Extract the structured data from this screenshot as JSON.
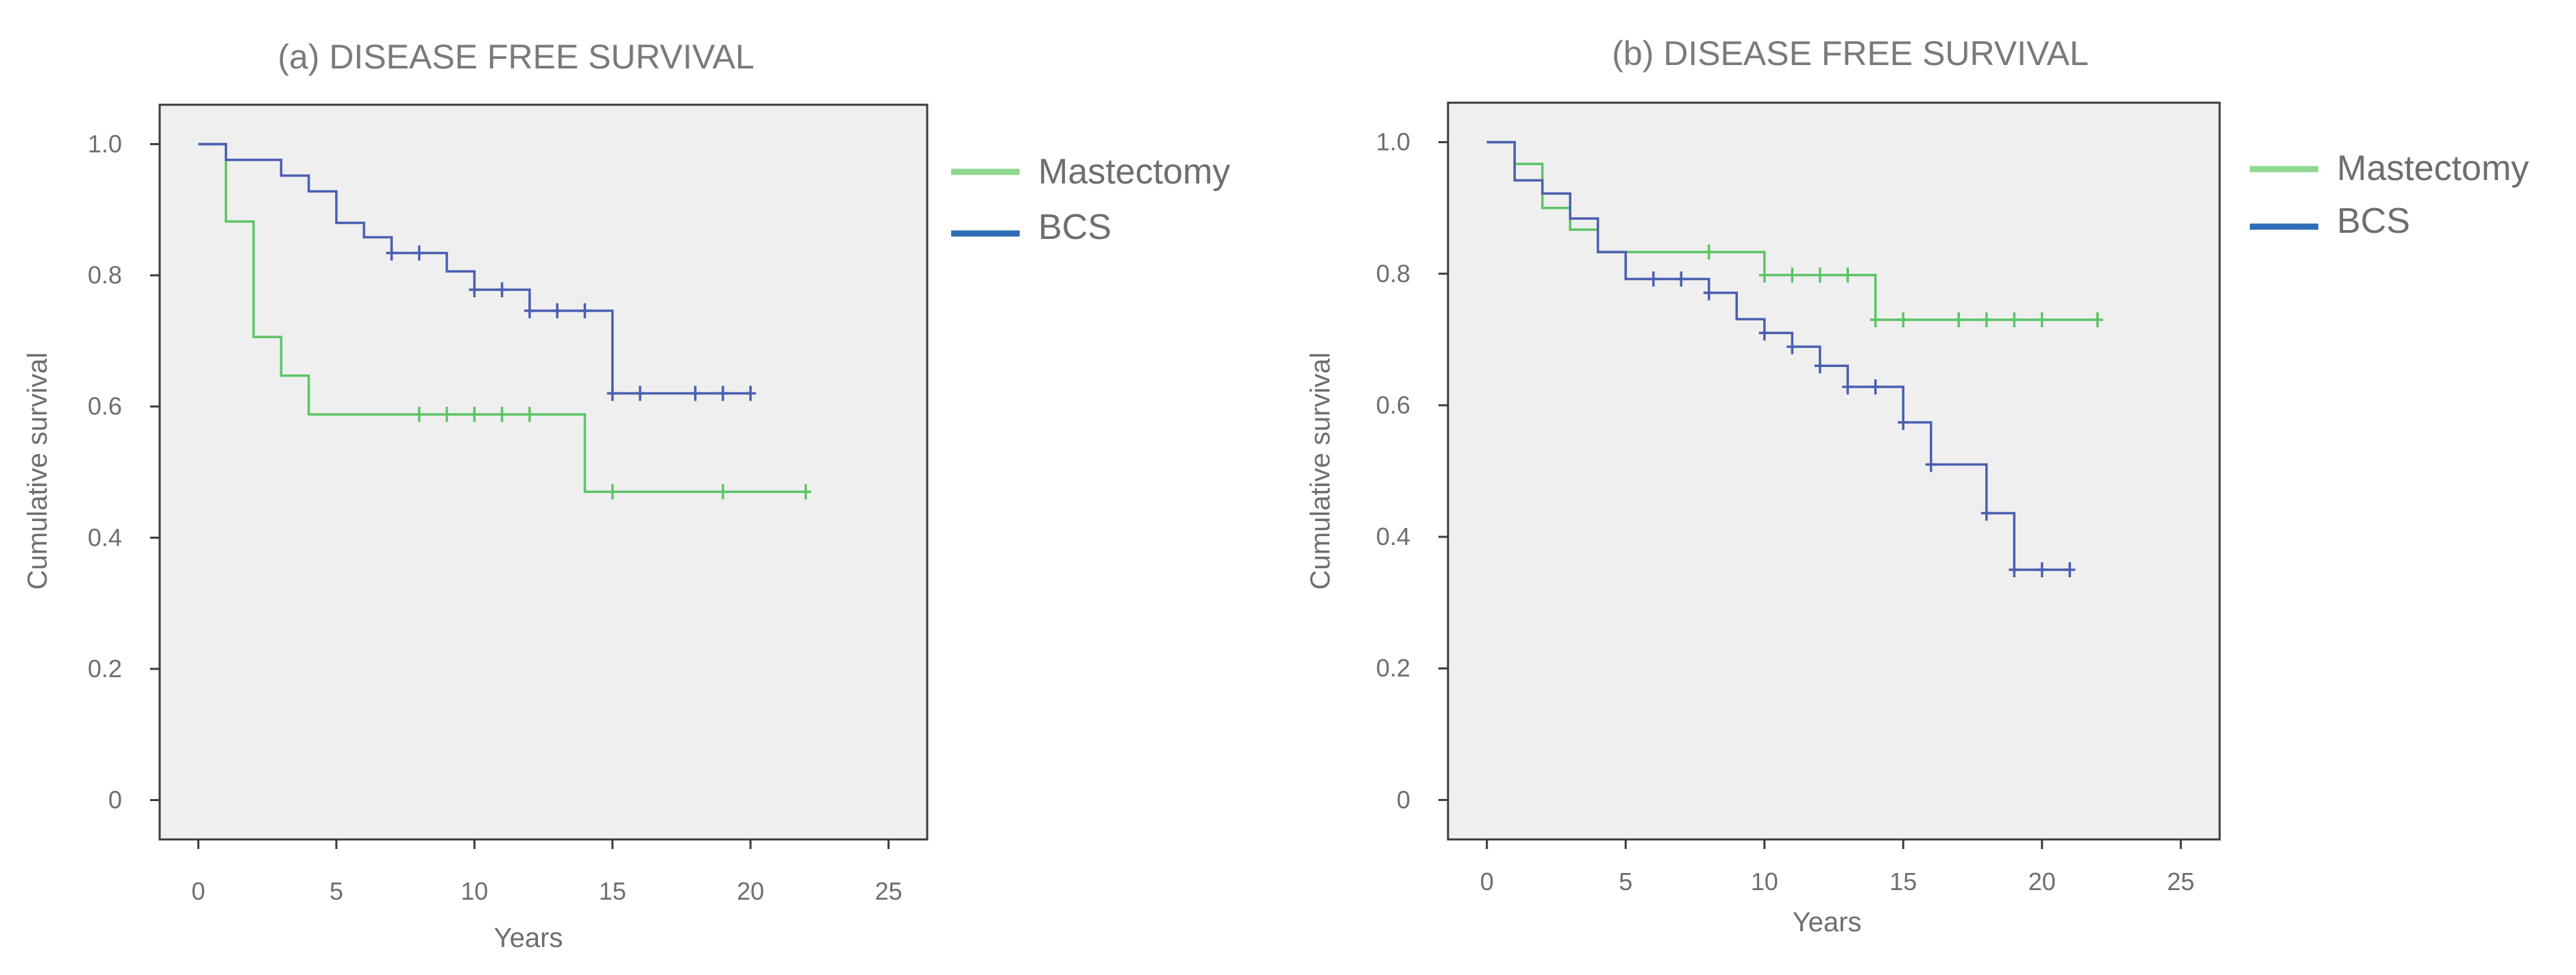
{
  "colors": {
    "mastectomy": "#5cc466",
    "bcs": "#4a5fb0",
    "legend_mastectomy": "#8ed78e",
    "legend_bcs": "#2e6db5",
    "plot_bg": "#efefef",
    "frame": "#3c3c3c"
  },
  "chart_data": [
    {
      "type": "line",
      "step": true,
      "title": "(a) DISEASE FREE SURVIVAL",
      "xlabel": "Years",
      "ylabel": "Cumulative survival",
      "xlim": [
        -1.4,
        26.4
      ],
      "ylim": [
        -0.06,
        1.06
      ],
      "xticks": [
        0,
        5,
        10,
        15,
        20,
        25
      ],
      "xtick_labels": [
        "0",
        "5",
        "10",
        "15",
        "20",
        "25"
      ],
      "yticks": [
        0,
        0.2,
        0.4,
        0.6,
        0.8,
        1.0
      ],
      "ytick_labels": [
        "0",
        "0.2",
        "0.4",
        "0.6",
        "0.8",
        "1.0"
      ],
      "legend_position": "right",
      "series": [
        {
          "name": "Mastectomy",
          "color_key": "mastectomy",
          "steps": [
            [
              0,
              1.0
            ],
            [
              1,
              0.882
            ],
            [
              2,
              0.706
            ],
            [
              3,
              0.647
            ],
            [
              4,
              0.588
            ],
            [
              14,
              0.47
            ],
            [
              22,
              0.47
            ]
          ],
          "censored": [
            [
              8,
              0.588
            ],
            [
              9,
              0.588
            ],
            [
              10,
              0.588
            ],
            [
              11,
              0.588
            ],
            [
              12,
              0.588
            ],
            [
              15,
              0.47
            ],
            [
              19,
              0.47
            ],
            [
              22,
              0.47
            ]
          ]
        },
        {
          "name": "BCS",
          "color_key": "bcs",
          "steps": [
            [
              0,
              1.0
            ],
            [
              1,
              0.976
            ],
            [
              3,
              0.952
            ],
            [
              4,
              0.928
            ],
            [
              5,
              0.88
            ],
            [
              6,
              0.858
            ],
            [
              7,
              0.834
            ],
            [
              9,
              0.806
            ],
            [
              10,
              0.778
            ],
            [
              12,
              0.746
            ],
            [
              15,
              0.62
            ],
            [
              20,
              0.62
            ]
          ],
          "censored": [
            [
              7,
              0.834
            ],
            [
              8,
              0.834
            ],
            [
              10,
              0.778
            ],
            [
              11,
              0.778
            ],
            [
              12,
              0.746
            ],
            [
              13,
              0.746
            ],
            [
              14,
              0.746
            ],
            [
              15,
              0.62
            ],
            [
              16,
              0.62
            ],
            [
              18,
              0.62
            ],
            [
              19,
              0.62
            ],
            [
              20,
              0.62
            ]
          ]
        }
      ]
    },
    {
      "type": "line",
      "step": true,
      "title": "(b) DISEASE FREE SURVIVAL",
      "xlabel": "Years",
      "ylabel": "Cumulative survival",
      "xlim": [
        -1.4,
        26.4
      ],
      "ylim": [
        -0.06,
        1.06
      ],
      "xticks": [
        0,
        5,
        10,
        15,
        20,
        25
      ],
      "xtick_labels": [
        "0",
        "5",
        "10",
        "15",
        "20",
        "25"
      ],
      "yticks": [
        0,
        0.2,
        0.4,
        0.6,
        0.8,
        1.0
      ],
      "ytick_labels": [
        "0",
        "0.2",
        "0.4",
        "0.6",
        "0.8",
        "1.0"
      ],
      "legend_position": "right",
      "series": [
        {
          "name": "Mastectomy",
          "color_key": "mastectomy",
          "steps": [
            [
              0,
              1.0
            ],
            [
              1,
              0.967
            ],
            [
              2,
              0.9
            ],
            [
              3,
              0.867
            ],
            [
              4,
              0.833
            ],
            [
              10,
              0.798
            ],
            [
              14,
              0.73
            ],
            [
              22,
              0.73
            ]
          ],
          "censored": [
            [
              8,
              0.833
            ],
            [
              10,
              0.798
            ],
            [
              11,
              0.798
            ],
            [
              12,
              0.798
            ],
            [
              13,
              0.798
            ],
            [
              14,
              0.73
            ],
            [
              15,
              0.73
            ],
            [
              17,
              0.73
            ],
            [
              18,
              0.73
            ],
            [
              19,
              0.73
            ],
            [
              20,
              0.73
            ],
            [
              22,
              0.73
            ]
          ]
        },
        {
          "name": "BCS",
          "color_key": "bcs",
          "steps": [
            [
              0,
              1.0
            ],
            [
              1,
              0.942
            ],
            [
              2,
              0.922
            ],
            [
              3,
              0.884
            ],
            [
              4,
              0.833
            ],
            [
              5,
              0.792
            ],
            [
              8,
              0.771
            ],
            [
              9,
              0.731
            ],
            [
              10,
              0.71
            ],
            [
              11,
              0.689
            ],
            [
              12,
              0.66
            ],
            [
              13,
              0.628
            ],
            [
              15,
              0.574
            ],
            [
              16,
              0.51
            ],
            [
              18,
              0.436
            ],
            [
              19,
              0.35
            ],
            [
              21,
              0.35
            ]
          ],
          "censored": [
            [
              6,
              0.792
            ],
            [
              7,
              0.792
            ],
            [
              8,
              0.771
            ],
            [
              10,
              0.71
            ],
            [
              11,
              0.689
            ],
            [
              12,
              0.66
            ],
            [
              13,
              0.628
            ],
            [
              14,
              0.628
            ],
            [
              15,
              0.574
            ],
            [
              16,
              0.51
            ],
            [
              18,
              0.436
            ],
            [
              19,
              0.35
            ],
            [
              20,
              0.35
            ],
            [
              21,
              0.35
            ]
          ]
        }
      ]
    }
  ]
}
